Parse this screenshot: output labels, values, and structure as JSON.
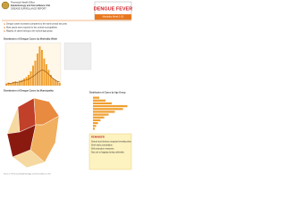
{
  "header": {
    "agency": "Provincial Health Office",
    "unit": "Epidemiology and Surveillance Unit",
    "report": "DISEASE SURVEILLANCE REPORT",
    "disease": "DENGUE FEVER",
    "period": "Morbidity Week 1-52"
  },
  "highlights": [
    "Dengue cases increased compared to the same period last year.",
    "Most cases were reported in the central municipalities.",
    "Majority of cases belong to the school-age group."
  ],
  "weekly_chart": {
    "type": "bar",
    "title": "Distribution of Dengue Cases by Morbidity Week",
    "color": "#f0a030",
    "line_color": "#8a4a10",
    "ylim": [
      0,
      60
    ],
    "values": [
      3,
      4,
      3,
      5,
      6,
      5,
      7,
      8,
      10,
      12,
      15,
      20,
      28,
      35,
      45,
      55,
      50,
      38,
      30,
      22,
      15,
      10,
      8,
      6,
      4
    ],
    "line_values": [
      2,
      3,
      3,
      4,
      4,
      5,
      5,
      6,
      7,
      8,
      9,
      11,
      13,
      15,
      18,
      20,
      22,
      21,
      19,
      16,
      13,
      10,
      8,
      6,
      5
    ]
  },
  "map": {
    "title": "Distribution of Dengue Cases by Municipality"
  },
  "age_chart": {
    "type": "hbar",
    "title": "Distribution of Cases by Age Group",
    "color": "#f0a030",
    "xlim": [
      0,
      60
    ],
    "values": [
      10,
      20,
      30,
      55,
      48,
      35,
      25,
      18,
      12,
      8,
      5,
      3
    ]
  },
  "notes": {
    "title": "REMINDER",
    "text": [
      "Search and destroy mosquito breeding sites.",
      "Seek early consultation.",
      "Self protection measures.",
      "Say yes to fogging during outbreaks."
    ]
  },
  "footer": "Source: Provincial Epidemiology and Surveillance Unit"
}
